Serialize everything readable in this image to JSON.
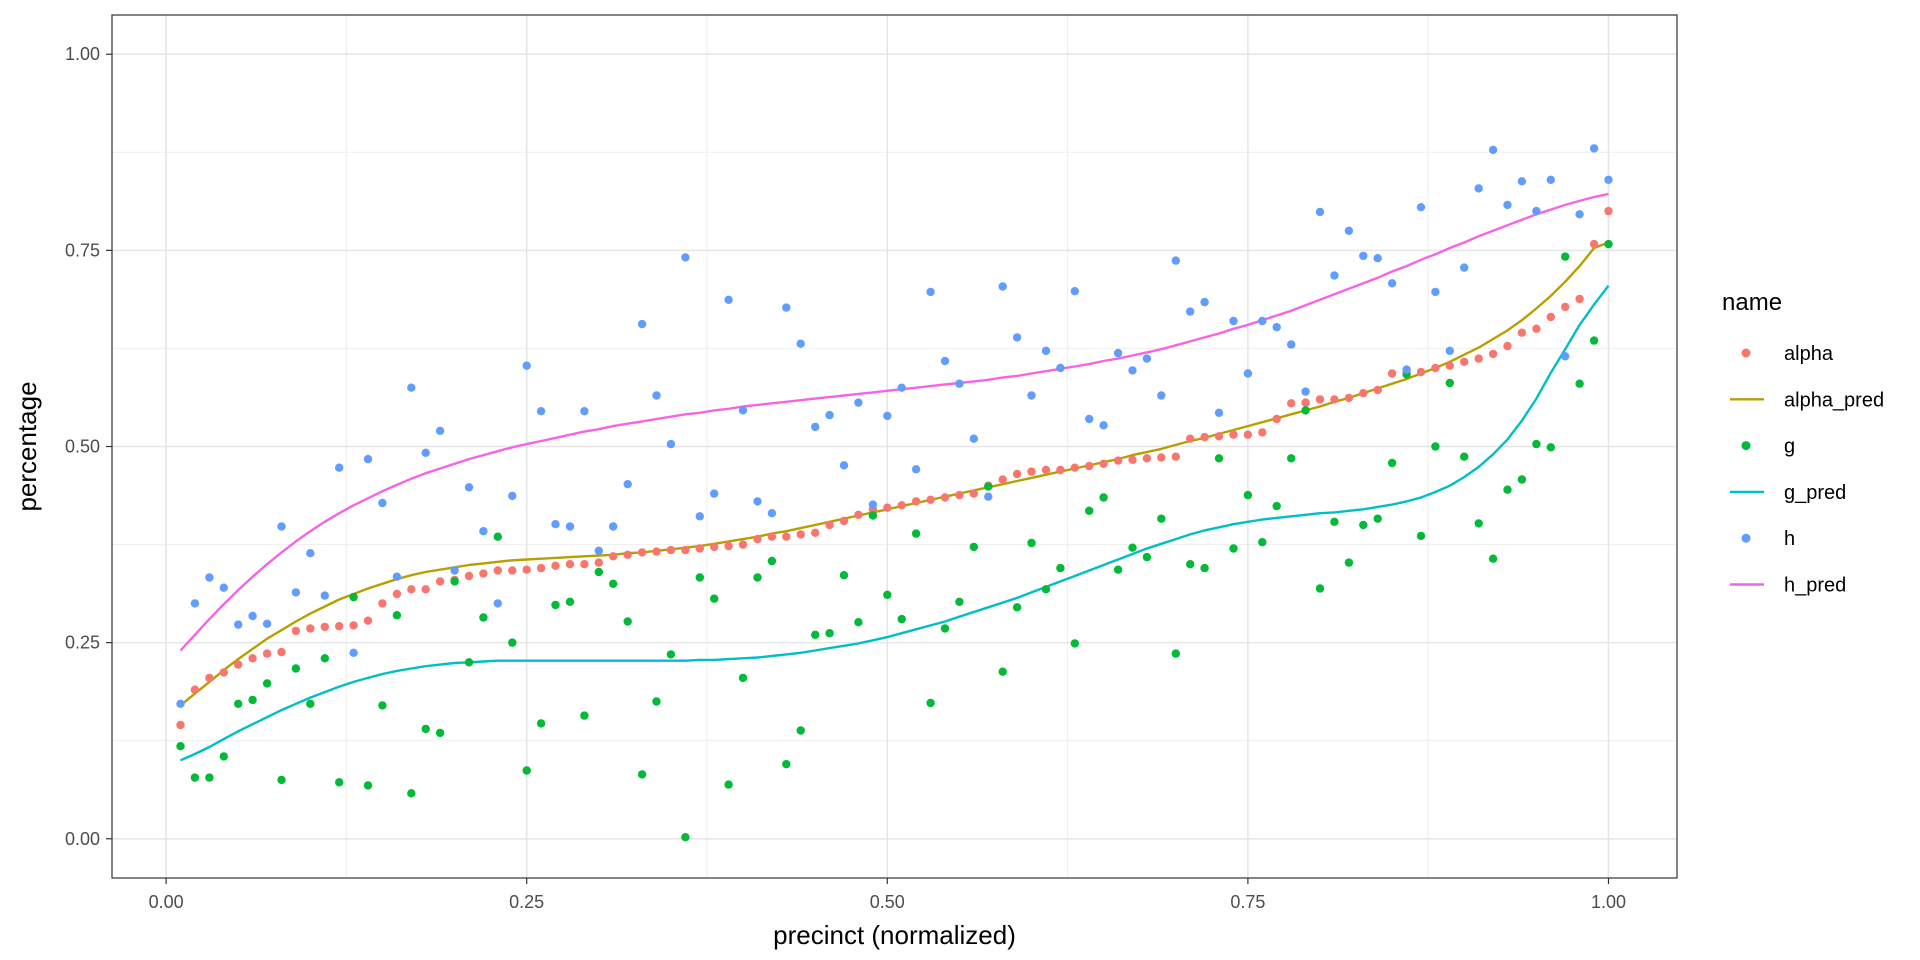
{
  "chart_data": {
    "type": "scatter",
    "title": "",
    "xlabel": "precinct (normalized)",
    "ylabel": "percentage",
    "xlim": [
      -0.0375,
      1.0475
    ],
    "ylim": [
      -0.05,
      1.05
    ],
    "xticks": [
      0.0,
      0.25,
      0.5,
      0.75,
      1.0
    ],
    "xtick_labels": [
      "0.00",
      "0.25",
      "0.50",
      "0.75",
      "1.00"
    ],
    "yticks": [
      0.0,
      0.25,
      0.5,
      0.75,
      1.0
    ],
    "ytick_labels": [
      "0.00",
      "0.25",
      "0.50",
      "0.75",
      "1.00"
    ],
    "grid": true,
    "legend": {
      "title": "name",
      "placement": "right",
      "entries": [
        {
          "name": "alpha",
          "kind": "point",
          "color": "#F8766D"
        },
        {
          "name": "alpha_pred",
          "kind": "line",
          "color": "#B79F00"
        },
        {
          "name": "g",
          "kind": "point",
          "color": "#00BA38"
        },
        {
          "name": "g_pred",
          "kind": "line",
          "color": "#00BFC4"
        },
        {
          "name": "h",
          "kind": "point",
          "color": "#619CFF"
        },
        {
          "name": "h_pred",
          "kind": "line",
          "color": "#F564E3"
        }
      ]
    },
    "x": [
      0.01,
      0.02,
      0.03,
      0.04,
      0.05,
      0.06,
      0.07,
      0.08,
      0.09,
      0.1,
      0.11,
      0.12,
      0.13,
      0.14,
      0.15,
      0.16,
      0.17,
      0.18,
      0.19,
      0.2,
      0.21,
      0.22,
      0.23,
      0.24,
      0.25,
      0.26,
      0.27,
      0.28,
      0.29,
      0.3,
      0.31,
      0.32,
      0.33,
      0.34,
      0.35,
      0.36,
      0.37,
      0.38,
      0.39,
      0.4,
      0.41,
      0.42,
      0.43,
      0.44,
      0.45,
      0.46,
      0.47,
      0.48,
      0.49,
      0.5,
      0.51,
      0.52,
      0.53,
      0.54,
      0.55,
      0.56,
      0.57,
      0.58,
      0.59,
      0.6,
      0.61,
      0.62,
      0.63,
      0.64,
      0.65,
      0.66,
      0.67,
      0.68,
      0.69,
      0.7,
      0.71,
      0.72,
      0.73,
      0.74,
      0.75,
      0.76,
      0.77,
      0.78,
      0.79,
      0.8,
      0.81,
      0.82,
      0.83,
      0.84,
      0.85,
      0.86,
      0.87,
      0.88,
      0.89,
      0.9,
      0.91,
      0.92,
      0.93,
      0.94,
      0.95,
      0.96,
      0.97,
      0.98,
      0.99,
      1.0
    ],
    "series": [
      {
        "name": "alpha",
        "kind": "point",
        "color": "#F8766D",
        "values": [
          0.145,
          0.19,
          0.205,
          0.212,
          0.222,
          0.23,
          0.236,
          0.238,
          0.265,
          0.268,
          0.27,
          0.271,
          0.272,
          0.278,
          0.3,
          0.312,
          0.318,
          0.318,
          0.328,
          0.33,
          0.335,
          0.338,
          0.342,
          0.342,
          0.343,
          0.345,
          0.348,
          0.35,
          0.35,
          0.352,
          0.36,
          0.362,
          0.365,
          0.366,
          0.368,
          0.368,
          0.37,
          0.372,
          0.373,
          0.375,
          0.382,
          0.385,
          0.385,
          0.388,
          0.39,
          0.4,
          0.405,
          0.413,
          0.42,
          0.422,
          0.425,
          0.43,
          0.432,
          0.435,
          0.438,
          0.44,
          0.45,
          0.458,
          0.465,
          0.468,
          0.47,
          0.47,
          0.473,
          0.475,
          0.478,
          0.482,
          0.483,
          0.485,
          0.486,
          0.487,
          0.51,
          0.512,
          0.513,
          0.515,
          0.515,
          0.518,
          0.535,
          0.555,
          0.556,
          0.56,
          0.56,
          0.562,
          0.568,
          0.572,
          0.593,
          0.595,
          0.595,
          0.6,
          0.603,
          0.608,
          0.612,
          0.618,
          0.628,
          0.645,
          0.65,
          0.665,
          0.678,
          0.688,
          0.758,
          0.8
        ]
      },
      {
        "name": "alpha_pred",
        "kind": "line",
        "color": "#B79F00",
        "values": [
          0.17,
          0.185,
          0.2,
          0.215,
          0.229,
          0.242,
          0.255,
          0.266,
          0.277,
          0.287,
          0.296,
          0.305,
          0.312,
          0.319,
          0.325,
          0.331,
          0.336,
          0.34,
          0.343,
          0.346,
          0.349,
          0.351,
          0.353,
          0.355,
          0.356,
          0.357,
          0.358,
          0.359,
          0.36,
          0.361,
          0.362,
          0.364,
          0.365,
          0.367,
          0.369,
          0.371,
          0.373,
          0.376,
          0.379,
          0.382,
          0.385,
          0.389,
          0.392,
          0.396,
          0.4,
          0.404,
          0.408,
          0.412,
          0.416,
          0.42,
          0.424,
          0.428,
          0.432,
          0.436,
          0.44,
          0.444,
          0.448,
          0.452,
          0.456,
          0.46,
          0.464,
          0.468,
          0.472,
          0.476,
          0.48,
          0.484,
          0.489,
          0.493,
          0.497,
          0.502,
          0.507,
          0.511,
          0.516,
          0.521,
          0.526,
          0.531,
          0.536,
          0.541,
          0.546,
          0.551,
          0.557,
          0.562,
          0.568,
          0.574,
          0.58,
          0.586,
          0.593,
          0.6,
          0.608,
          0.617,
          0.626,
          0.637,
          0.648,
          0.661,
          0.676,
          0.692,
          0.71,
          0.73,
          0.753,
          0.76
        ]
      },
      {
        "name": "g",
        "kind": "point",
        "color": "#00BA38",
        "values": [
          0.118,
          0.078,
          0.078,
          0.105,
          0.172,
          0.177,
          0.198,
          0.075,
          0.217,
          0.172,
          0.23,
          0.072,
          0.308,
          0.068,
          0.17,
          0.285,
          0.058,
          0.14,
          0.135,
          0.328,
          0.225,
          0.282,
          0.385,
          0.25,
          0.087,
          0.147,
          0.298,
          0.302,
          0.157,
          0.34,
          0.325,
          0.277,
          0.082,
          0.175,
          0.235,
          0.002,
          0.333,
          0.306,
          0.069,
          0.205,
          0.333,
          0.354,
          0.095,
          0.138,
          0.26,
          0.262,
          0.336,
          0.276,
          0.412,
          0.311,
          0.28,
          0.389,
          0.173,
          0.268,
          0.302,
          0.372,
          0.449,
          0.213,
          0.295,
          0.377,
          0.318,
          0.345,
          0.249,
          0.418,
          0.435,
          0.343,
          0.371,
          0.359,
          0.408,
          0.236,
          0.35,
          0.345,
          0.485,
          0.37,
          0.438,
          0.378,
          0.424,
          0.485,
          0.546,
          0.319,
          0.404,
          0.352,
          0.4,
          0.408,
          0.479,
          0.592,
          0.386,
          0.5,
          0.581,
          0.487,
          0.402,
          0.357,
          0.445,
          0.458,
          0.503,
          0.499,
          0.742,
          0.58,
          0.635,
          0.758
        ]
      },
      {
        "name": "g_pred",
        "kind": "line",
        "color": "#00BFC4",
        "values": [
          0.1,
          0.108,
          0.117,
          0.127,
          0.137,
          0.146,
          0.155,
          0.164,
          0.172,
          0.18,
          0.187,
          0.194,
          0.2,
          0.205,
          0.21,
          0.214,
          0.217,
          0.22,
          0.222,
          0.224,
          0.225,
          0.226,
          0.227,
          0.227,
          0.227,
          0.227,
          0.227,
          0.227,
          0.227,
          0.227,
          0.227,
          0.227,
          0.227,
          0.227,
          0.227,
          0.227,
          0.228,
          0.228,
          0.229,
          0.23,
          0.231,
          0.233,
          0.235,
          0.237,
          0.24,
          0.243,
          0.246,
          0.249,
          0.253,
          0.257,
          0.262,
          0.267,
          0.272,
          0.277,
          0.283,
          0.289,
          0.295,
          0.301,
          0.307,
          0.314,
          0.321,
          0.328,
          0.335,
          0.342,
          0.349,
          0.356,
          0.363,
          0.37,
          0.376,
          0.382,
          0.388,
          0.393,
          0.397,
          0.401,
          0.404,
          0.407,
          0.409,
          0.411,
          0.413,
          0.415,
          0.416,
          0.418,
          0.42,
          0.423,
          0.426,
          0.43,
          0.435,
          0.442,
          0.45,
          0.461,
          0.474,
          0.49,
          0.509,
          0.533,
          0.561,
          0.594,
          0.624,
          0.655,
          0.681,
          0.705
        ]
      },
      {
        "name": "h",
        "kind": "point",
        "color": "#619CFF",
        "values": [
          0.172,
          0.3,
          0.333,
          0.32,
          0.273,
          0.284,
          0.274,
          0.398,
          0.314,
          0.364,
          0.31,
          0.473,
          0.237,
          0.484,
          0.428,
          0.334,
          0.575,
          0.492,
          0.52,
          0.342,
          0.448,
          0.392,
          0.3,
          0.437,
          0.603,
          0.545,
          0.401,
          0.398,
          0.545,
          0.367,
          0.398,
          0.452,
          0.656,
          0.565,
          0.503,
          0.741,
          0.411,
          0.44,
          0.687,
          0.546,
          0.43,
          0.415,
          0.677,
          0.631,
          0.525,
          0.54,
          0.476,
          0.556,
          0.426,
          0.539,
          0.575,
          0.471,
          0.697,
          0.609,
          0.58,
          0.51,
          0.436,
          0.704,
          0.639,
          0.565,
          0.622,
          0.6,
          0.698,
          0.535,
          0.527,
          0.619,
          0.597,
          0.612,
          0.565,
          0.737,
          0.672,
          0.684,
          0.543,
          0.66,
          0.593,
          0.66,
          0.652,
          0.63,
          0.57,
          0.799,
          0.718,
          0.775,
          0.743,
          0.74,
          0.708,
          0.598,
          0.805,
          0.697,
          0.622,
          0.728,
          0.829,
          0.878,
          0.808,
          0.838,
          0.8,
          0.84,
          0.615,
          0.796,
          0.88,
          0.84
        ]
      },
      {
        "name": "h_pred",
        "kind": "line",
        "color": "#F564E3",
        "values": [
          0.24,
          0.26,
          0.28,
          0.299,
          0.317,
          0.334,
          0.35,
          0.365,
          0.379,
          0.392,
          0.404,
          0.415,
          0.425,
          0.434,
          0.443,
          0.451,
          0.459,
          0.466,
          0.472,
          0.478,
          0.484,
          0.489,
          0.494,
          0.499,
          0.503,
          0.507,
          0.511,
          0.515,
          0.519,
          0.522,
          0.526,
          0.529,
          0.532,
          0.535,
          0.538,
          0.541,
          0.543,
          0.546,
          0.548,
          0.551,
          0.553,
          0.555,
          0.557,
          0.559,
          0.561,
          0.563,
          0.565,
          0.567,
          0.569,
          0.571,
          0.573,
          0.575,
          0.577,
          0.579,
          0.581,
          0.583,
          0.585,
          0.588,
          0.59,
          0.593,
          0.596,
          0.599,
          0.602,
          0.605,
          0.609,
          0.612,
          0.616,
          0.62,
          0.624,
          0.629,
          0.634,
          0.639,
          0.644,
          0.65,
          0.655,
          0.661,
          0.667,
          0.673,
          0.68,
          0.687,
          0.694,
          0.701,
          0.708,
          0.715,
          0.723,
          0.73,
          0.738,
          0.745,
          0.753,
          0.76,
          0.768,
          0.775,
          0.782,
          0.789,
          0.796,
          0.802,
          0.808,
          0.813,
          0.818,
          0.822
        ]
      }
    ]
  }
}
